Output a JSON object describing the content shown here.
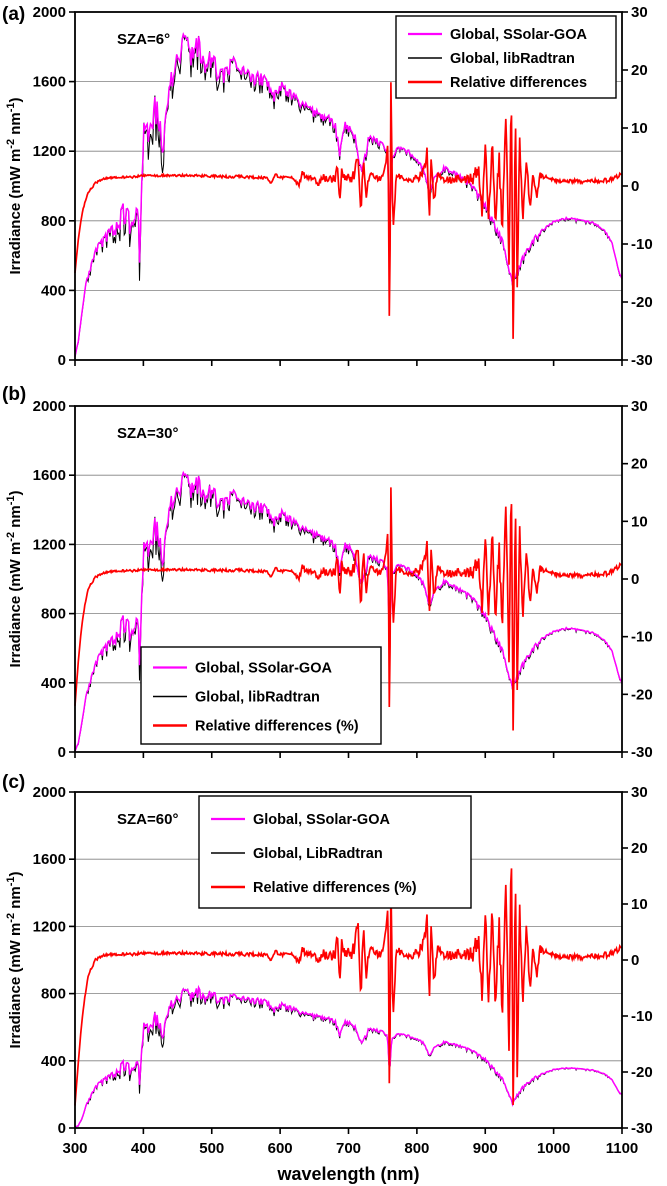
{
  "figure_title": "",
  "chart_data": {
    "type": "line",
    "xlabel": "wavelength (nm)",
    "x_range": [
      300,
      1100
    ],
    "x_ticks": [
      300,
      400,
      500,
      600,
      700,
      800,
      900,
      1000,
      1100
    ],
    "y_left_range": [
      0,
      2000
    ],
    "y_left_ticks": [
      0,
      400,
      800,
      1200,
      1600,
      2000
    ],
    "y_right_range": [
      -30,
      30
    ],
    "y_right_ticks": [
      -30,
      -20,
      -10,
      0,
      10,
      20,
      30
    ],
    "grid": "horizontal",
    "ylabel": {
      "pre": "Irradiance (mW m",
      "sup1": "-2",
      "mid": " nm",
      "sup2": "-1",
      "post": ")"
    },
    "colors": {
      "ssolar": "#ff00ff",
      "libradtran": "#000000",
      "reldiff": "#ff0000",
      "grid": "#808080",
      "axis": "#000000"
    },
    "x_irr": [
      300,
      305,
      310,
      315,
      320,
      330,
      340,
      350,
      360,
      370,
      380,
      385,
      390,
      395,
      400,
      410,
      420,
      430,
      440,
      450,
      460,
      470,
      480,
      490,
      500,
      510,
      520,
      530,
      540,
      550,
      560,
      570,
      580,
      590,
      600,
      610,
      620,
      630,
      640,
      650,
      660,
      670,
      680,
      687,
      695,
      700,
      710,
      715,
      720,
      730,
      740,
      750,
      757,
      760,
      763,
      770,
      780,
      790,
      800,
      810,
      818,
      825,
      840,
      850,
      860,
      880,
      900,
      910,
      925,
      935,
      940,
      945,
      955,
      970,
      985,
      1000,
      1020,
      1040,
      1060,
      1075,
      1085,
      1095,
      1100
    ],
    "x_rel": [
      300,
      305,
      310,
      315,
      320,
      330,
      340,
      360,
      380,
      400,
      420,
      440,
      460,
      480,
      500,
      520,
      540,
      560,
      580,
      588,
      592,
      600,
      610,
      620,
      628,
      632,
      640,
      650,
      656,
      660,
      670,
      680,
      684,
      687,
      690,
      695,
      700,
      705,
      710,
      714,
      718,
      722,
      726,
      730,
      740,
      750,
      755,
      758,
      760,
      762,
      765,
      770,
      780,
      790,
      800,
      810,
      815,
      818,
      821,
      825,
      830,
      840,
      850,
      860,
      870,
      880,
      890,
      895,
      900,
      905,
      910,
      915,
      920,
      925,
      930,
      935,
      938,
      941,
      944,
      947,
      950,
      955,
      960,
      965,
      970,
      975,
      980,
      990,
      1000,
      1020,
      1040,
      1060,
      1080,
      1090,
      1100
    ],
    "noise_profile_x": [
      300,
      330,
      360,
      380,
      400,
      430,
      460,
      500,
      550,
      600,
      650,
      700,
      750,
      800,
      850,
      900,
      940,
      1000,
      1100
    ],
    "noise_profile_amp": [
      5,
      40,
      80,
      120,
      150,
      160,
      120,
      90,
      70,
      60,
      50,
      40,
      30,
      25,
      25,
      30,
      40,
      15,
      10
    ],
    "rel_noise_x": [
      300,
      600,
      690,
      710,
      740,
      790,
      810,
      830,
      870,
      900,
      960,
      990,
      1100
    ],
    "rel_noise_amp": [
      0.15,
      0.25,
      0.8,
      1.2,
      0.5,
      0.4,
      1.0,
      0.5,
      0.8,
      2.0,
      1.5,
      0.3,
      0.4
    ],
    "panels": [
      {
        "id": "a",
        "label": "(a)",
        "annotation": "SZA=6°",
        "noise_scale": 1.0,
        "rel_noise_scale": 1.0,
        "legend": {
          "position": "top-right",
          "items": [
            {
              "label": "Global, SSolar-GOA",
              "key": "ssolar"
            },
            {
              "label": "Global, libRadtran",
              "key": "libradtran"
            },
            {
              "label": "Relative differences",
              "key": "reldiff"
            }
          ]
        },
        "irradiance": [
          20,
          120,
          280,
          420,
          520,
          640,
          700,
          760,
          800,
          900,
          850,
          780,
          950,
          700,
          1350,
          1450,
          1520,
          1350,
          1650,
          1800,
          1880,
          1800,
          1870,
          1720,
          1780,
          1700,
          1680,
          1750,
          1680,
          1700,
          1640,
          1660,
          1620,
          1550,
          1600,
          1570,
          1540,
          1500,
          1480,
          1450,
          1420,
          1410,
          1380,
          1200,
          1380,
          1350,
          1300,
          1150,
          1100,
          1300,
          1280,
          1250,
          1200,
          750,
          1150,
          1230,
          1220,
          1200,
          1160,
          1100,
          980,
          1050,
          1120,
          1100,
          1070,
          1020,
          900,
          820,
          700,
          520,
          450,
          500,
          600,
          700,
          760,
          800,
          820,
          810,
          790,
          750,
          680,
          520,
          470
        ],
        "rel_diff": [
          -15,
          -9,
          -5,
          -2.5,
          -1,
          0.5,
          1.2,
          1.5,
          1.5,
          1.8,
          1.8,
          1.8,
          1.8,
          1.8,
          1.7,
          1.6,
          1.6,
          1.5,
          1.4,
          0.5,
          2,
          1.5,
          1.4,
          1.3,
          0.2,
          2.2,
          1.4,
          1.2,
          0,
          1.5,
          1.3,
          1.2,
          3.5,
          -3,
          2.5,
          1.2,
          1.1,
          1.5,
          2.5,
          5.5,
          -4,
          4.5,
          -2.5,
          2,
          1.2,
          1.5,
          4,
          8,
          -30,
          18,
          -8,
          2,
          1.2,
          1.1,
          1.2,
          2.5,
          6,
          -6,
          5,
          -3,
          2,
          1.2,
          1.1,
          1.2,
          1.1,
          1.3,
          2.5,
          -4,
          6,
          -5,
          7,
          -6,
          5,
          -8,
          12,
          -15,
          19,
          -30,
          15,
          -20,
          10,
          -6,
          5,
          -4,
          3,
          -2,
          2,
          1.5,
          1,
          0.8,
          0.8,
          0.8,
          1,
          1.5,
          2
        ]
      },
      {
        "id": "b",
        "label": "(b)",
        "annotation": "SZA=30°",
        "noise_scale": 0.85,
        "rel_noise_scale": 1.1,
        "legend": {
          "position": "bottom-left",
          "items": [
            {
              "label": "Global, SSolar-GOA",
              "key": "ssolar"
            },
            {
              "label": "Global, libRadtran",
              "key": "libradtran"
            },
            {
              "label": "Relative differences (%)",
              "key": "reldiff"
            }
          ]
        },
        "irradiance": [
          5,
          60,
          180,
          300,
          400,
          520,
          600,
          650,
          700,
          790,
          750,
          690,
          840,
          620,
          1200,
          1300,
          1360,
          1220,
          1480,
          1560,
          1620,
          1560,
          1600,
          1500,
          1550,
          1490,
          1470,
          1520,
          1470,
          1480,
          1440,
          1450,
          1420,
          1360,
          1400,
          1380,
          1350,
          1320,
          1300,
          1280,
          1260,
          1240,
          1220,
          1060,
          1220,
          1200,
          1150,
          1020,
          980,
          1150,
          1130,
          1110,
          1060,
          650,
          1020,
          1090,
          1080,
          1060,
          1030,
          980,
          860,
          930,
          1000,
          980,
          950,
          910,
          800,
          720,
          600,
          440,
          380,
          430,
          520,
          610,
          670,
          700,
          720,
          710,
          690,
          650,
          590,
          450,
          400
        ],
        "rel_diff": [
          -22,
          -14,
          -8,
          -4,
          -1.5,
          0.3,
          1,
          1.4,
          1.4,
          1.6,
          1.6,
          1.6,
          1.6,
          1.6,
          1.5,
          1.5,
          1.5,
          1.4,
          1.3,
          0.4,
          1.9,
          1.4,
          1.3,
          1.2,
          0.1,
          2.1,
          1.3,
          1.1,
          -0.1,
          1.4,
          1.2,
          1.1,
          3.8,
          -3.5,
          2.6,
          1.1,
          1,
          1.4,
          2.6,
          6,
          -4.5,
          5,
          -3,
          2,
          1.1,
          1.4,
          4.5,
          9,
          -30,
          16,
          -9,
          2,
          1.1,
          1,
          1.1,
          2.6,
          6.5,
          -6.5,
          5.5,
          -3.5,
          2,
          1.1,
          1,
          1.1,
          1,
          1.2,
          2.6,
          -4.5,
          6.5,
          -5.5,
          7.5,
          -6.5,
          5.5,
          -9,
          13,
          -16,
          20,
          -30,
          16,
          -22,
          11,
          -7,
          5.5,
          -4.5,
          3,
          -2.5,
          2,
          1.4,
          0.9,
          0.6,
          0.6,
          0.7,
          1,
          1.8,
          2.5
        ]
      },
      {
        "id": "c",
        "label": "(c)",
        "annotation": "SZA=60°",
        "noise_scale": 0.5,
        "rel_noise_scale": 1.4,
        "legend": {
          "position": "top-center",
          "items": [
            {
              "label": "Global, SSolar-GOA",
              "key": "ssolar"
            },
            {
              "label": "Global, LibRadtran",
              "key": "libradtran"
            },
            {
              "label": "Relative differences (%)",
              "key": "reldiff"
            }
          ]
        },
        "irradiance": [
          2,
          20,
          60,
          120,
          180,
          250,
          290,
          320,
          350,
          400,
          380,
          350,
          430,
          330,
          620,
          660,
          690,
          620,
          760,
          800,
          830,
          810,
          840,
          790,
          820,
          790,
          780,
          800,
          780,
          790,
          770,
          775,
          760,
          720,
          745,
          735,
          720,
          700,
          690,
          680,
          670,
          660,
          650,
          560,
          645,
          635,
          610,
          540,
          510,
          600,
          590,
          580,
          550,
          330,
          530,
          565,
          560,
          550,
          535,
          510,
          440,
          480,
          520,
          510,
          495,
          470,
          415,
          370,
          300,
          200,
          150,
          190,
          250,
          300,
          330,
          350,
          360,
          355,
          345,
          325,
          290,
          220,
          200
        ],
        "rel_diff": [
          -26,
          -18,
          -11,
          -6,
          -2.5,
          0,
          0.8,
          1,
          1,
          1.2,
          1.2,
          1.2,
          1.2,
          1.2,
          1.1,
          1.1,
          1,
          1,
          0.9,
          0,
          1.6,
          1,
          0.9,
          0.9,
          -0.3,
          1.8,
          1,
          0.8,
          -0.5,
          1.1,
          0.9,
          0.8,
          4.5,
          -4.5,
          3,
          0.9,
          0.8,
          1.4,
          3,
          7,
          -6,
          6,
          -4,
          2,
          0.9,
          1.3,
          5.5,
          10,
          -30,
          14,
          -11,
          2,
          0.9,
          0.8,
          1,
          3,
          8,
          -7.5,
          6.5,
          -4.5,
          2.2,
          1,
          0.9,
          1,
          0.9,
          1.1,
          3,
          -5.5,
          7.5,
          -6.5,
          9,
          -8,
          6.5,
          -11,
          14,
          -18,
          24,
          -30,
          18,
          -24,
          12,
          -8,
          6.5,
          -5.5,
          3.5,
          -3,
          2.2,
          1.4,
          0.8,
          0.5,
          0.5,
          0.6,
          1,
          1.6,
          2.2
        ]
      }
    ]
  }
}
